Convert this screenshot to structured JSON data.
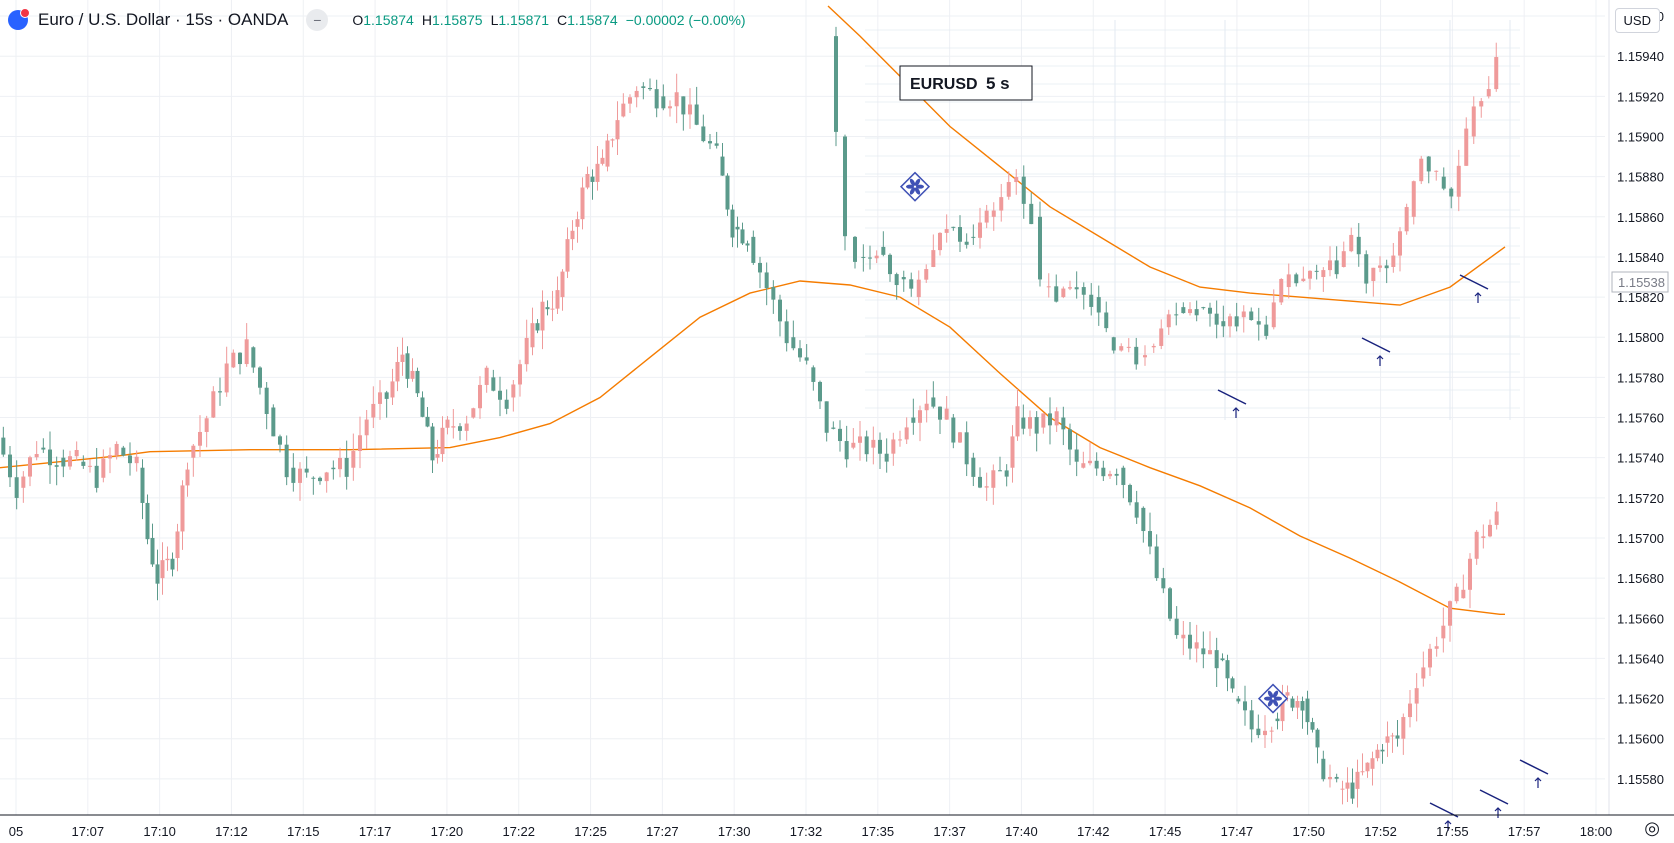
{
  "header": {
    "symbol_title": "Euro / U.S. Dollar · 15s · OANDA",
    "collapse_label": "−",
    "ohlc": {
      "o_label": "O",
      "o_value": "1.15874",
      "h_label": "H",
      "h_value": "1.15875",
      "l_label": "L",
      "l_value": "1.15871",
      "c_label": "C",
      "c_value": "1.15874",
      "change": "−0.00002 (−0.00%)"
    }
  },
  "currency_button": "USD",
  "overlay_box": {
    "symbol": "EURUSD",
    "interval": "5 s"
  },
  "chart_data": {
    "type": "candlestick",
    "interval": "15s",
    "price_axis": {
      "ticks": [
        "1.15580",
        "1.15600",
        "1.15620",
        "1.15640",
        "1.15660",
        "1.15680",
        "1.15700",
        "1.15720",
        "1.15740",
        "1.15760",
        "1.15780",
        "1.15800",
        "1.15820",
        "1.15840",
        "1.15860",
        "1.15880",
        "1.15900",
        "1.15920",
        "1.15940",
        "1.15960"
      ],
      "range": [
        1.15562,
        1.15968
      ],
      "current_price_label": "1.15538"
    },
    "time_axis": {
      "labels": [
        "05",
        "17:07",
        "17:10",
        "17:12",
        "17:15",
        "17:17",
        "17:20",
        "17:22",
        "17:25",
        "17:27",
        "17:30",
        "17:32",
        "17:35",
        "17:37",
        "17:40",
        "17:42",
        "17:45",
        "17:47",
        "17:50",
        "17:52",
        "17:55",
        "17:57",
        "18:00"
      ]
    },
    "main_series": {
      "name": "EURUSD 15s",
      "up_color": "#ef9a9a",
      "down_color": "#5b9a8b",
      "close_points": [
        [
          0,
          1.1575
        ],
        [
          20,
          1.15725
        ],
        [
          40,
          1.15745
        ],
        [
          60,
          1.1574
        ],
        [
          80,
          1.15738
        ],
        [
          100,
          1.1573
        ],
        [
          120,
          1.15745
        ],
        [
          140,
          1.15735
        ],
        [
          150,
          1.157
        ],
        [
          160,
          1.1568
        ],
        [
          175,
          1.1569
        ],
        [
          190,
          1.1574
        ],
        [
          210,
          1.1576
        ],
        [
          230,
          1.15785
        ],
        [
          250,
          1.15795
        ],
        [
          270,
          1.15765
        ],
        [
          290,
          1.15735
        ],
        [
          310,
          1.1573
        ],
        [
          330,
          1.15735
        ],
        [
          350,
          1.15735
        ],
        [
          370,
          1.1576
        ],
        [
          390,
          1.1577
        ],
        [
          405,
          1.15792
        ],
        [
          420,
          1.1577
        ],
        [
          435,
          1.1574
        ],
        [
          450,
          1.15755
        ],
        [
          470,
          1.1576
        ],
        [
          490,
          1.1578
        ],
        [
          510,
          1.1577
        ],
        [
          530,
          1.15795
        ],
        [
          545,
          1.15815
        ],
        [
          560,
          1.1582
        ],
        [
          575,
          1.15855
        ],
        [
          590,
          1.1588
        ],
        [
          605,
          1.15885
        ],
        [
          620,
          1.1591
        ],
        [
          640,
          1.15925
        ],
        [
          660,
          1.1592
        ],
        [
          680,
          1.1592
        ],
        [
          700,
          1.15905
        ],
        [
          720,
          1.1589
        ],
        [
          735,
          1.15855
        ],
        [
          750,
          1.1585
        ],
        [
          770,
          1.15825
        ],
        [
          790,
          1.158
        ],
        [
          810,
          1.15785
        ],
        [
          830,
          1.15755
        ],
        [
          850,
          1.15745
        ],
        [
          870,
          1.15745
        ],
        [
          890,
          1.15742
        ],
        [
          910,
          1.1576
        ],
        [
          930,
          1.1577
        ],
        [
          950,
          1.1576
        ],
        [
          970,
          1.1574
        ],
        [
          990,
          1.15725
        ],
        [
          1010,
          1.15735
        ],
        [
          1020,
          1.1576
        ],
        [
          1040,
          1.15755
        ],
        [
          1060,
          1.1576
        ],
        [
          1080,
          1.15735
        ],
        [
          1100,
          1.15735
        ],
        [
          1120,
          1.15735
        ],
        [
          1140,
          1.15715
        ],
        [
          1160,
          1.1568
        ],
        [
          1180,
          1.1565
        ],
        [
          1200,
          1.15645
        ],
        [
          1220,
          1.1564
        ],
        [
          1235,
          1.1562
        ],
        [
          1255,
          1.15605
        ],
        [
          1275,
          1.1561
        ],
        [
          1290,
          1.1562
        ],
        [
          1305,
          1.1562
        ],
        [
          1320,
          1.1559
        ],
        [
          1340,
          1.15575
        ],
        [
          1355,
          1.15575
        ],
        [
          1370,
          1.15585
        ],
        [
          1385,
          1.15598
        ],
        [
          1400,
          1.156
        ],
        [
          1420,
          1.1563
        ],
        [
          1440,
          1.1565
        ],
        [
          1460,
          1.1567
        ],
        [
          1480,
          1.157
        ],
        [
          1500,
          1.1571
        ]
      ]
    },
    "inset_series": {
      "name": "EURUSD 5 s",
      "close_points": [
        [
          832,
          1.1595
        ],
        [
          840,
          1.159
        ],
        [
          850,
          1.1585
        ],
        [
          860,
          1.1584
        ],
        [
          880,
          1.15845
        ],
        [
          900,
          1.1583
        ],
        [
          915,
          1.1582
        ],
        [
          930,
          1.15835
        ],
        [
          950,
          1.15855
        ],
        [
          970,
          1.1585
        ],
        [
          990,
          1.1586
        ],
        [
          1005,
          1.1587
        ],
        [
          1020,
          1.1588
        ],
        [
          1035,
          1.1586
        ],
        [
          1045,
          1.15825
        ],
        [
          1060,
          1.1582
        ],
        [
          1080,
          1.15825
        ],
        [
          1095,
          1.1582
        ],
        [
          1110,
          1.158
        ],
        [
          1125,
          1.15795
        ],
        [
          1140,
          1.1579
        ],
        [
          1150,
          1.15795
        ],
        [
          1165,
          1.15805
        ],
        [
          1180,
          1.15815
        ],
        [
          1200,
          1.15815
        ],
        [
          1220,
          1.15808
        ],
        [
          1240,
          1.1581
        ],
        [
          1255,
          1.15808
        ],
        [
          1270,
          1.15805
        ],
        [
          1285,
          1.15825
        ],
        [
          1300,
          1.15828
        ],
        [
          1320,
          1.1583
        ],
        [
          1340,
          1.15835
        ],
        [
          1355,
          1.1585
        ],
        [
          1370,
          1.15828
        ],
        [
          1390,
          1.15835
        ],
        [
          1410,
          1.1586
        ],
        [
          1425,
          1.1589
        ],
        [
          1440,
          1.1588
        ],
        [
          1455,
          1.1587
        ],
        [
          1470,
          1.159
        ],
        [
          1485,
          1.1592
        ],
        [
          1500,
          1.15935
        ]
      ]
    },
    "moving_averages": [
      {
        "name": "MA main",
        "color": "#f57c00",
        "points": [
          [
            0,
            1.15735
          ],
          [
            60,
            1.15738
          ],
          [
            120,
            1.15741
          ],
          [
            150,
            1.15743
          ],
          [
            250,
            1.15744
          ],
          [
            350,
            1.15744
          ],
          [
            450,
            1.15745
          ],
          [
            500,
            1.1575
          ],
          [
            550,
            1.15757
          ],
          [
            600,
            1.1577
          ],
          [
            650,
            1.1579
          ],
          [
            700,
            1.1581
          ],
          [
            750,
            1.15822
          ],
          [
            800,
            1.15828
          ],
          [
            850,
            1.15826
          ],
          [
            900,
            1.1582
          ],
          [
            950,
            1.15805
          ],
          [
            1000,
            1.15782
          ],
          [
            1050,
            1.1576
          ],
          [
            1100,
            1.15745
          ],
          [
            1150,
            1.15735
          ],
          [
            1200,
            1.15726
          ],
          [
            1250,
            1.15715
          ],
          [
            1300,
            1.15701
          ],
          [
            1350,
            1.1569
          ],
          [
            1400,
            1.15678
          ],
          [
            1450,
            1.15665
          ],
          [
            1500,
            1.15662
          ],
          [
            1505,
            1.15662
          ]
        ]
      },
      {
        "name": "MA inset",
        "color": "#f57c00",
        "points": [
          [
            828,
            1.15965
          ],
          [
            860,
            1.1595
          ],
          [
            900,
            1.1593
          ],
          [
            950,
            1.15905
          ],
          [
            1000,
            1.15885
          ],
          [
            1050,
            1.15865
          ],
          [
            1100,
            1.1585
          ],
          [
            1150,
            1.15835
          ],
          [
            1200,
            1.15825
          ],
          [
            1250,
            1.15822
          ],
          [
            1300,
            1.1582
          ],
          [
            1350,
            1.15818
          ],
          [
            1400,
            1.15816
          ],
          [
            1450,
            1.15825
          ],
          [
            1505,
            1.15845
          ]
        ]
      }
    ],
    "markers": [
      {
        "type": "star-diamond",
        "x": 915,
        "price": 1.15875,
        "color": "#3f51b5"
      },
      {
        "type": "star-diamond",
        "x": 1273,
        "price": 1.1562,
        "color": "#3f51b5"
      }
    ]
  }
}
